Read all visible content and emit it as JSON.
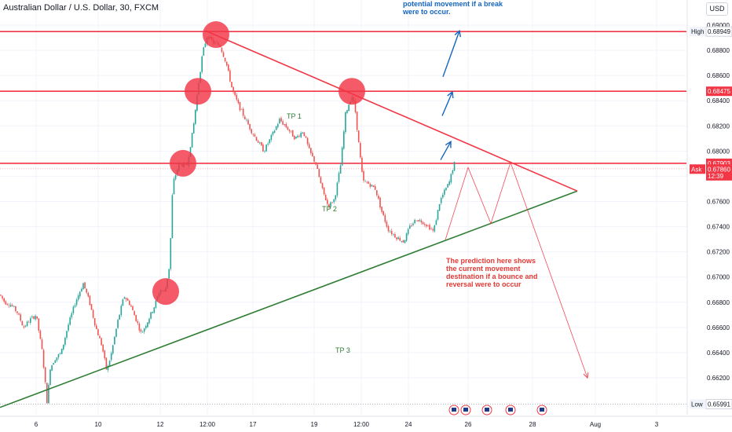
{
  "header": {
    "symbol_title": "Australian Dollar / U.S. Dollar, 30, FXCM",
    "currency_button": "USD"
  },
  "annotations": {
    "break_note": "potential movement if a break were to occur.",
    "bounce_note": "The prediction here shows the current movement destination if a bounce and reversal were to occur",
    "tp1": "TP 1",
    "tp2": "TP 2",
    "tp3": "TP 3"
  },
  "price_tags": {
    "high_label": "High",
    "high_value": "0.68949",
    "resistance_value": "0.68475",
    "level_value": "0.67903",
    "ask_label": "Ask",
    "ask_value": "0.67860",
    "countdown": "12:39",
    "low_label": "Low",
    "low_value": "0.65991"
  },
  "colors": {
    "bull": "#26a69a",
    "bear": "#ef5350",
    "resistance": "#f23645",
    "support": "#2e7d32",
    "arrow_blue": "#1565c0",
    "marker": "#f23645"
  },
  "chart_data": {
    "type": "candlestick",
    "title": "Australian Dollar / U.S. Dollar, 30, FXCM",
    "ylim": [
      0.659,
      0.6902
    ],
    "y_ticks": [
      "0.69000",
      "0.68800",
      "0.68600",
      "0.68400",
      "0.68200",
      "0.68000",
      "0.67800",
      "0.67600",
      "0.67400",
      "0.67200",
      "0.67000",
      "0.66800",
      "0.66600",
      "0.66400",
      "0.66200"
    ],
    "x_ticks": [
      "6",
      "10",
      "12",
      "12:00",
      "17",
      "19",
      "12:00",
      "24",
      "26",
      "28",
      "Aug",
      "3"
    ],
    "price_path": [
      [
        0,
        0.6686
      ],
      [
        6,
        0.668
      ],
      [
        14,
        0.6678
      ],
      [
        22,
        0.6672
      ],
      [
        30,
        0.666
      ],
      [
        38,
        0.6666
      ],
      [
        46,
        0.667
      ],
      [
        54,
        0.664
      ],
      [
        60,
        0.66
      ],
      [
        64,
        0.6628
      ],
      [
        70,
        0.6635
      ],
      [
        78,
        0.664
      ],
      [
        86,
        0.666
      ],
      [
        96,
        0.668
      ],
      [
        106,
        0.6695
      ],
      [
        114,
        0.668
      ],
      [
        122,
        0.666
      ],
      [
        130,
        0.6645
      ],
      [
        136,
        0.6625
      ],
      [
        142,
        0.664
      ],
      [
        150,
        0.6665
      ],
      [
        158,
        0.6685
      ],
      [
        166,
        0.6678
      ],
      [
        174,
        0.6665
      ],
      [
        180,
        0.6655
      ],
      [
        188,
        0.6665
      ],
      [
        196,
        0.6676
      ],
      [
        204,
        0.669
      ],
      [
        210,
        0.6688
      ],
      [
        216,
        0.671
      ],
      [
        220,
        0.6774
      ],
      [
        228,
        0.679
      ],
      [
        238,
        0.6788
      ],
      [
        246,
        0.6818
      ],
      [
        252,
        0.685
      ],
      [
        258,
        0.6878
      ],
      [
        264,
        0.6892
      ],
      [
        272,
        0.6886
      ],
      [
        280,
        0.6884
      ],
      [
        288,
        0.687
      ],
      [
        296,
        0.6848
      ],
      [
        304,
        0.6836
      ],
      [
        312,
        0.6826
      ],
      [
        320,
        0.6816
      ],
      [
        328,
        0.6808
      ],
      [
        336,
        0.68
      ],
      [
        346,
        0.6812
      ],
      [
        356,
        0.6825
      ],
      [
        366,
        0.6818
      ],
      [
        376,
        0.681
      ],
      [
        386,
        0.6816
      ],
      [
        394,
        0.68
      ],
      [
        402,
        0.679
      ],
      [
        410,
        0.677
      ],
      [
        418,
        0.6756
      ],
      [
        426,
        0.6762
      ],
      [
        434,
        0.679
      ],
      [
        440,
        0.683
      ],
      [
        448,
        0.6844
      ],
      [
        452,
        0.6834
      ],
      [
        456,
        0.681
      ],
      [
        462,
        0.6776
      ],
      [
        470,
        0.6774
      ],
      [
        478,
        0.677
      ],
      [
        486,
        0.6752
      ],
      [
        494,
        0.6738
      ],
      [
        504,
        0.6732
      ],
      [
        514,
        0.6728
      ],
      [
        522,
        0.674
      ],
      [
        530,
        0.6746
      ],
      [
        538,
        0.6744
      ],
      [
        546,
        0.674
      ],
      [
        552,
        0.6736
      ],
      [
        560,
        0.676
      ],
      [
        566,
        0.6768
      ],
      [
        572,
        0.6775
      ],
      [
        578,
        0.679
      ]
    ],
    "high": 0.68949,
    "low": 0.65991,
    "ask": 0.6786,
    "horizontal_levels": [
      0.68949,
      0.68475,
      0.67903
    ],
    "support_trendline": [
      [
        0,
        0.65965
      ],
      [
        735,
        0.67683
      ]
    ],
    "resistance_trendline": [
      [
        262,
        0.68955
      ],
      [
        735,
        0.67683
      ]
    ],
    "circled_points": [
      [
        275,
        0.68925
      ],
      [
        252,
        0.68475
      ],
      [
        233,
        0.67903
      ],
      [
        211,
        0.66885
      ],
      [
        448,
        0.68475
      ]
    ],
    "projection_red": [
      [
        567,
        0.67295
      ],
      [
        596,
        0.6787
      ],
      [
        625,
        0.67425
      ],
      [
        650,
        0.6791
      ],
      [
        748,
        0.66199
      ]
    ],
    "projection_blue": [
      [
        [
          564,
          0.6859
        ],
        [
          585,
          0.68955
        ]
      ],
      [
        [
          563,
          0.6828
        ],
        [
          576,
          0.6847
        ]
      ],
      [
        [
          561,
          0.6793
        ],
        [
          574,
          0.68075
        ]
      ]
    ]
  }
}
